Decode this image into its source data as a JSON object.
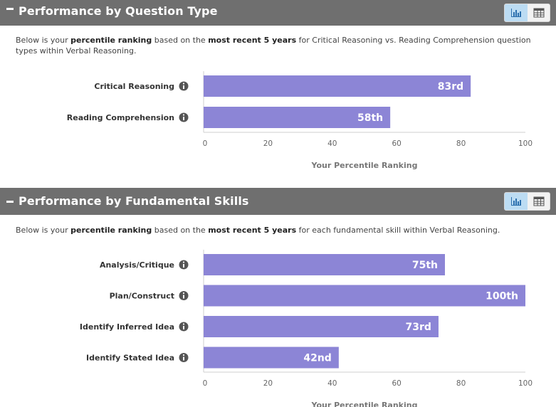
{
  "colors": {
    "bar": "#8c85d6",
    "header_bg": "#6f6f6f",
    "toggle_active": "#bcdcf3",
    "info_icon": "#555555"
  },
  "sections": [
    {
      "title": "Performance by Question Type",
      "collapse_icon": "minus-icon",
      "toggle": {
        "chart_icon": "bar-chart-icon",
        "table_icon": "table-icon",
        "active": "chart"
      },
      "description": {
        "p1": "Below is your ",
        "b1": "percentile ranking",
        "p2": " based on the ",
        "b2": "most recent 5 years",
        "p3": " for Critical Reasoning vs. Reading Comprehension question types within Verbal Reasoning."
      }
    },
    {
      "title": "Performance by Fundamental Skills",
      "collapse_icon": "minus-icon",
      "toggle": {
        "chart_icon": "bar-chart-icon",
        "table_icon": "table-icon",
        "active": "chart"
      },
      "description": {
        "p1": "Below is your ",
        "b1": "percentile ranking",
        "p2": " based on the ",
        "b2": "most recent 5 years",
        "p3": " for each fundamental skill within Verbal Reasoning."
      }
    }
  ],
  "chart_data": [
    {
      "type": "bar",
      "orientation": "horizontal",
      "categories": [
        "Critical Reasoning",
        "Reading Comprehension"
      ],
      "values": [
        83,
        58
      ],
      "data_labels": [
        "83rd",
        "58th"
      ],
      "xlabel": "Your Percentile Ranking",
      "ylabel": "",
      "xlim": [
        0,
        100
      ],
      "xticks": [
        0,
        20,
        40,
        60,
        80,
        100
      ],
      "grid": false,
      "category_icon": "info-icon"
    },
    {
      "type": "bar",
      "orientation": "horizontal",
      "categories": [
        "Analysis/Critique",
        "Plan/Construct",
        "Identify Inferred Idea",
        "Identify Stated Idea"
      ],
      "values": [
        75,
        100,
        73,
        42
      ],
      "data_labels": [
        "75th",
        "100th",
        "73rd",
        "42nd"
      ],
      "xlabel": "Your Percentile Ranking",
      "ylabel": "",
      "xlim": [
        0,
        100
      ],
      "xticks": [
        0,
        20,
        40,
        60,
        80,
        100
      ],
      "grid": false,
      "category_icon": "info-icon"
    }
  ]
}
